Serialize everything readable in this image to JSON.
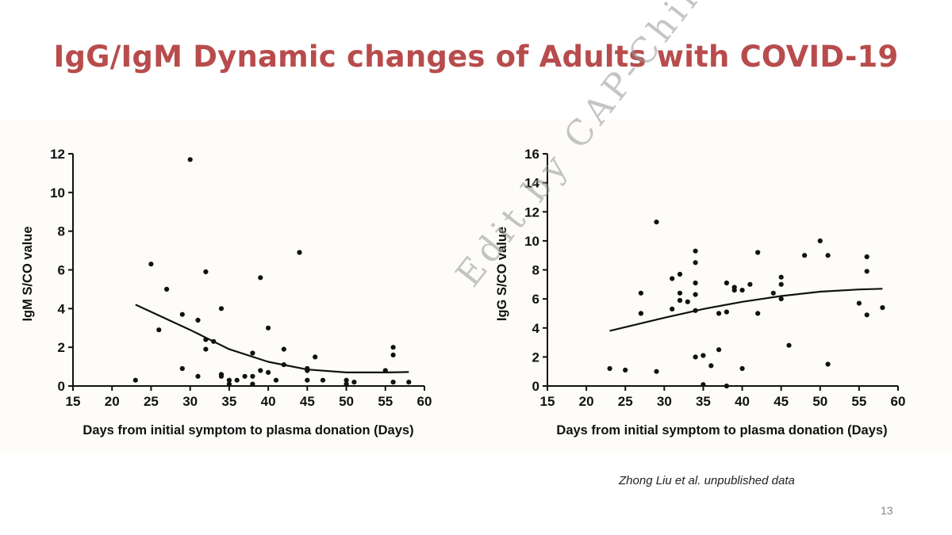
{
  "slide": {
    "title": "IgG/IgM Dynamic changes of Adults with COVID-19",
    "watermark": "Edit by CAP-China",
    "source": "Zhong Liu et al. unpublished data",
    "page_number": "13",
    "colors": {
      "title": "#b84c4c",
      "panel": "#fdfcf9",
      "ink": "#111111"
    }
  },
  "chart_data": [
    {
      "type": "scatter",
      "xlabel": "Days from initial symptom to plasma donation (Days)",
      "ylabel": "IgM S/CO value",
      "xlim": [
        15,
        60
      ],
      "ylim": [
        0,
        12
      ],
      "xticks": [
        15,
        20,
        25,
        30,
        35,
        40,
        45,
        50,
        55,
        60
      ],
      "yticks": [
        0,
        2,
        4,
        6,
        8,
        10,
        12
      ],
      "grid": false,
      "points": [
        [
          23,
          0.3
        ],
        [
          25,
          6.3
        ],
        [
          26,
          2.9
        ],
        [
          27,
          5.0
        ],
        [
          29,
          3.7
        ],
        [
          29,
          0.9
        ],
        [
          30,
          11.7
        ],
        [
          31,
          3.4
        ],
        [
          31,
          0.5
        ],
        [
          32,
          5.9
        ],
        [
          32,
          2.4
        ],
        [
          32,
          1.9
        ],
        [
          33,
          2.3
        ],
        [
          34,
          4.0
        ],
        [
          34,
          0.6
        ],
        [
          34,
          0.5
        ],
        [
          35,
          0.3
        ],
        [
          35,
          0.1
        ],
        [
          36,
          0.3
        ],
        [
          37,
          0.5
        ],
        [
          38,
          1.7
        ],
        [
          38,
          0.5
        ],
        [
          38,
          0.1
        ],
        [
          39,
          5.6
        ],
        [
          39,
          0.8
        ],
        [
          40,
          3.0
        ],
        [
          40,
          0.7
        ],
        [
          41,
          0.3
        ],
        [
          42,
          1.9
        ],
        [
          42,
          1.1
        ],
        [
          44,
          6.9
        ],
        [
          45,
          0.9
        ],
        [
          45,
          0.8
        ],
        [
          45,
          0.3
        ],
        [
          46,
          1.5
        ],
        [
          47,
          0.3
        ],
        [
          50,
          0.3
        ],
        [
          50,
          0.1
        ],
        [
          51,
          0.2
        ],
        [
          55,
          0.8
        ],
        [
          56,
          2.0
        ],
        [
          56,
          1.6
        ],
        [
          56,
          0.2
        ],
        [
          58,
          0.2
        ]
      ],
      "trend": {
        "type": "quadratic",
        "points": [
          [
            23,
            4.2
          ],
          [
            30,
            2.9
          ],
          [
            35,
            1.9
          ],
          [
            40,
            1.25
          ],
          [
            45,
            0.85
          ],
          [
            50,
            0.7
          ],
          [
            55,
            0.7
          ],
          [
            58,
            0.72
          ]
        ]
      }
    },
    {
      "type": "scatter",
      "xlabel": "Days from initial symptom to plasma donation (Days)",
      "ylabel": "IgG S/CO value",
      "xlim": [
        15,
        60
      ],
      "ylim": [
        0,
        16
      ],
      "xticks": [
        15,
        20,
        25,
        30,
        35,
        40,
        45,
        50,
        55,
        60
      ],
      "yticks": [
        0,
        2,
        4,
        6,
        8,
        10,
        12,
        14,
        16
      ],
      "grid": false,
      "points": [
        [
          23,
          1.2
        ],
        [
          25,
          1.1
        ],
        [
          27,
          6.4
        ],
        [
          27,
          5.0
        ],
        [
          29,
          11.3
        ],
        [
          29,
          1.0
        ],
        [
          31,
          7.4
        ],
        [
          31,
          5.3
        ],
        [
          32,
          7.7
        ],
        [
          32,
          6.4
        ],
        [
          32,
          5.9
        ],
        [
          33,
          5.8
        ],
        [
          34,
          9.3
        ],
        [
          34,
          8.5
        ],
        [
          34,
          7.1
        ],
        [
          34,
          6.3
        ],
        [
          34,
          5.2
        ],
        [
          34,
          2.0
        ],
        [
          35,
          2.1
        ],
        [
          35,
          0.1
        ],
        [
          36,
          1.4
        ],
        [
          37,
          5.0
        ],
        [
          37,
          2.5
        ],
        [
          38,
          7.1
        ],
        [
          38,
          5.1
        ],
        [
          38,
          0.0
        ],
        [
          39,
          6.8
        ],
        [
          39,
          6.6
        ],
        [
          40,
          6.6
        ],
        [
          40,
          1.2
        ],
        [
          41,
          7.0
        ],
        [
          42,
          9.2
        ],
        [
          42,
          5.0
        ],
        [
          44,
          6.4
        ],
        [
          45,
          7.5
        ],
        [
          45,
          7.0
        ],
        [
          45,
          6.0
        ],
        [
          46,
          2.8
        ],
        [
          48,
          9.0
        ],
        [
          50,
          10.0
        ],
        [
          51,
          9.0
        ],
        [
          51,
          1.5
        ],
        [
          55,
          5.7
        ],
        [
          56,
          8.9
        ],
        [
          56,
          7.9
        ],
        [
          56,
          4.9
        ],
        [
          58,
          5.4
        ]
      ],
      "trend": {
        "type": "quadratic",
        "points": [
          [
            23,
            3.8
          ],
          [
            30,
            4.7
          ],
          [
            35,
            5.3
          ],
          [
            40,
            5.8
          ],
          [
            45,
            6.2
          ],
          [
            50,
            6.5
          ],
          [
            55,
            6.65
          ],
          [
            58,
            6.7
          ]
        ]
      }
    }
  ]
}
